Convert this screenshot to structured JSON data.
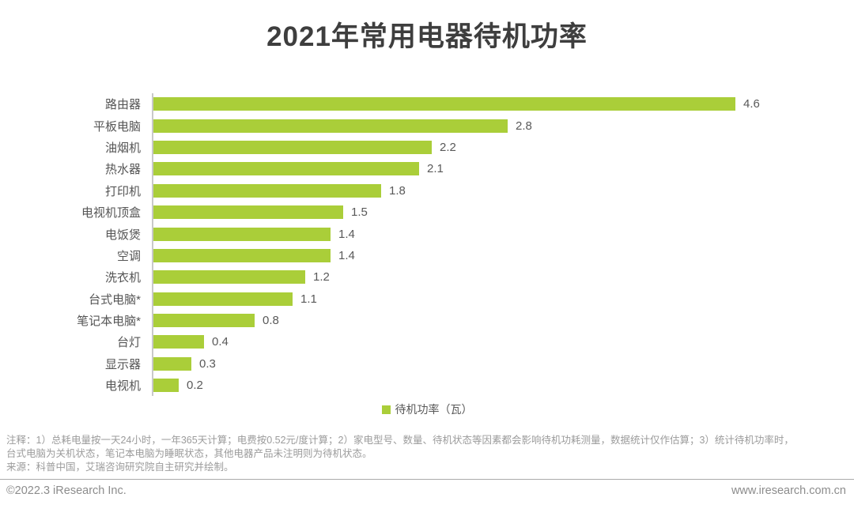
{
  "title": "2021年常用电器待机功率",
  "chart_data": {
    "type": "bar",
    "orientation": "horizontal",
    "categories": [
      "路由器",
      "平板电脑",
      "油烟机",
      "热水器",
      "打印机",
      "电视机顶盒",
      "电饭煲",
      "空调",
      "洗衣机",
      "台式电脑*",
      "笔记本电脑*",
      "台灯",
      "显示器",
      "电视机"
    ],
    "values": [
      4.6,
      2.8,
      2.2,
      2.1,
      1.8,
      1.5,
      1.4,
      1.4,
      1.2,
      1.1,
      0.8,
      0.4,
      0.3,
      0.2
    ],
    "value_labels": [
      "4.6",
      "2.8",
      "2.2",
      "2.1",
      "1.8",
      "1.5",
      "1.4",
      "1.4",
      "1.2",
      "1.1",
      "0.8",
      "0.4",
      "0.3",
      "0.2"
    ],
    "title": "2021年常用电器待机功率",
    "xlabel": "",
    "ylabel": "",
    "xlim": [
      0,
      4.6
    ],
    "grid": false,
    "legend_position": "bottom-center",
    "legend": "待机功率（瓦）",
    "bar_color": "#aace39"
  },
  "legend": {
    "label": "待机功率（瓦）"
  },
  "notes": {
    "line1": "注释：1）总耗电量按一天24小时，一年365天计算；电费按0.52元/度计算；2）家电型号、数量、待机状态等因素都会影响待机功耗测量，数据统计仅作估算；3）统计待机功率时，",
    "line2": "台式电脑为关机状态，笔记本电脑为睡眠状态，其他电器产品未注明则为待机状态。",
    "line3": "来源：科普中国，艾瑞咨询研究院自主研究并绘制。"
  },
  "footer": {
    "copyright": "©2022.3 iResearch Inc.",
    "website": "www.iresearch.com.cn"
  },
  "colors": {
    "bar": "#aace39",
    "title_text": "#3e3e3e",
    "category_label": "#555555",
    "value_label": "#595959",
    "note_text": "#9b9b9b",
    "axis_line": "#c9c9c9"
  }
}
